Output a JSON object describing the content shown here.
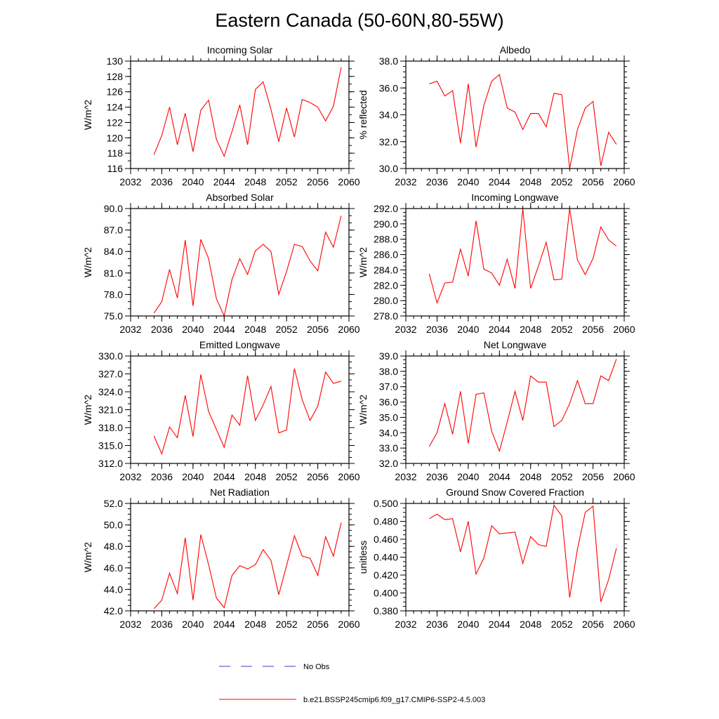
{
  "figure": {
    "title": "Eastern Canada (50-60N,80-55W)",
    "legend": [
      {
        "label": "No Obs",
        "color": "#3a3acc",
        "style": "dashed"
      },
      {
        "label": "b.e21.BSSP245cmip6.f09_g17.CMIP6-SSP2-4.5.003",
        "color": "#ff0000",
        "style": "solid"
      }
    ]
  },
  "chart_data": [
    {
      "type": "line",
      "title": "Incoming Solar",
      "xlabel": "",
      "ylabel": "W/m^2",
      "xlim": [
        2032,
        2060
      ],
      "xticks": [
        2032,
        2036,
        2040,
        2044,
        2048,
        2052,
        2056,
        2060
      ],
      "ylim": [
        116,
        130
      ],
      "yticks": [
        "116",
        "118",
        "120",
        "122",
        "124",
        "126",
        "128",
        "130"
      ],
      "yminor": 1,
      "xminor": 1,
      "x": [
        2035,
        2036,
        2037,
        2038,
        2039,
        2040,
        2041,
        2042,
        2043,
        2044,
        2045,
        2046,
        2047,
        2048,
        2049,
        2050,
        2051,
        2052,
        2053,
        2054,
        2055,
        2056,
        2057,
        2058,
        2059
      ],
      "series": [
        {
          "name": "b.e21.BSSP245cmip6.f09_g17.CMIP6-SSP2-4.5.003",
          "color": "#ff0000",
          "values": [
            117.8,
            120.3,
            124.0,
            119.1,
            123.2,
            118.2,
            123.6,
            124.9,
            119.8,
            117.6,
            120.8,
            124.3,
            119.1,
            126.3,
            127.3,
            123.7,
            119.5,
            123.9,
            120.1,
            125.0,
            124.6,
            124.0,
            122.2,
            124.1,
            129.2
          ]
        }
      ]
    },
    {
      "type": "line",
      "title": "Albedo",
      "xlabel": "",
      "ylabel": "% reflected",
      "xlim": [
        2032,
        2060
      ],
      "xticks": [
        2032,
        2036,
        2040,
        2044,
        2048,
        2052,
        2056,
        2060
      ],
      "ylim": [
        30,
        38
      ],
      "yticks": [
        "30.0",
        "32.0",
        "34.0",
        "36.0",
        "38.0"
      ],
      "yminor": 0.4,
      "xminor": 1,
      "x": [
        2035,
        2036,
        2037,
        2038,
        2039,
        2040,
        2041,
        2042,
        2043,
        2044,
        2045,
        2046,
        2047,
        2048,
        2049,
        2050,
        2051,
        2052,
        2053,
        2054,
        2055,
        2056,
        2057,
        2058,
        2059
      ],
      "series": [
        {
          "name": "b.e21.BSSP245cmip6.f09_g17.CMIP6-SSP2-4.5.003",
          "color": "#ff0000",
          "values": [
            36.3,
            36.5,
            35.4,
            35.8,
            31.9,
            36.3,
            31.6,
            34.7,
            36.5,
            37.0,
            34.5,
            34.2,
            32.9,
            34.1,
            34.1,
            33.1,
            35.6,
            35.5,
            30.0,
            32.9,
            34.5,
            35.0,
            30.2,
            32.7,
            31.8
          ]
        }
      ]
    },
    {
      "type": "line",
      "title": "Absorbed Solar",
      "xlabel": "",
      "ylabel": "W/m^2",
      "xlim": [
        2032,
        2060
      ],
      "xticks": [
        2032,
        2036,
        2040,
        2044,
        2048,
        2052,
        2056,
        2060
      ],
      "ylim": [
        75,
        90
      ],
      "yticks": [
        "75.0",
        "78.0",
        "81.0",
        "84.0",
        "87.0",
        "90.0"
      ],
      "yminor": 1,
      "xminor": 1,
      "x": [
        2035,
        2036,
        2037,
        2038,
        2039,
        2040,
        2041,
        2042,
        2043,
        2044,
        2045,
        2046,
        2047,
        2048,
        2049,
        2050,
        2051,
        2052,
        2053,
        2054,
        2055,
        2056,
        2057,
        2058,
        2059
      ],
      "series": [
        {
          "name": "b.e21.BSSP245cmip6.f09_g17.CMIP6-SSP2-4.5.003",
          "color": "#ff0000",
          "values": [
            75.4,
            77.0,
            81.5,
            77.5,
            85.6,
            76.4,
            85.7,
            83.0,
            77.4,
            75.0,
            80.1,
            83.0,
            80.8,
            84.1,
            85.0,
            84.0,
            78.0,
            81.2,
            85.0,
            84.7,
            82.7,
            81.3,
            86.7,
            84.6,
            89.0
          ]
        }
      ]
    },
    {
      "type": "line",
      "title": "Incoming Longwave",
      "xlabel": "",
      "ylabel": "W/m^2",
      "xlim": [
        2032,
        2060
      ],
      "xticks": [
        2032,
        2036,
        2040,
        2044,
        2048,
        2052,
        2056,
        2060
      ],
      "ylim": [
        278,
        292
      ],
      "yticks": [
        "278.0",
        "280.0",
        "282.0",
        "284.0",
        "286.0",
        "288.0",
        "290.0",
        "292.0"
      ],
      "yminor": 0.5,
      "xminor": 1,
      "x": [
        2035,
        2036,
        2037,
        2038,
        2039,
        2040,
        2041,
        2042,
        2043,
        2044,
        2045,
        2046,
        2047,
        2048,
        2049,
        2050,
        2051,
        2052,
        2053,
        2054,
        2055,
        2056,
        2057,
        2058,
        2059
      ],
      "series": [
        {
          "name": "b.e21.BSSP245cmip6.f09_g17.CMIP6-SSP2-4.5.003",
          "color": "#ff0000",
          "values": [
            283.5,
            279.7,
            282.3,
            282.4,
            286.7,
            283.2,
            290.4,
            284.1,
            283.6,
            282.0,
            285.4,
            281.6,
            292.0,
            281.6,
            284.5,
            287.6,
            282.7,
            282.8,
            292.0,
            285.3,
            283.4,
            285.5,
            289.6,
            287.9,
            287.1
          ]
        }
      ]
    },
    {
      "type": "line",
      "title": "Emitted Longwave",
      "xlabel": "",
      "ylabel": "W/m^2",
      "xlim": [
        2032,
        2060
      ],
      "xticks": [
        2032,
        2036,
        2040,
        2044,
        2048,
        2052,
        2056,
        2060
      ],
      "ylim": [
        312,
        330
      ],
      "yticks": [
        "312.0",
        "315.0",
        "318.0",
        "321.0",
        "324.0",
        "327.0",
        "330.0"
      ],
      "yminor": 1,
      "xminor": 1,
      "x": [
        2035,
        2036,
        2037,
        2038,
        2039,
        2040,
        2041,
        2042,
        2043,
        2044,
        2045,
        2046,
        2047,
        2048,
        2049,
        2050,
        2051,
        2052,
        2053,
        2054,
        2055,
        2056,
        2057,
        2058,
        2059
      ],
      "series": [
        {
          "name": "b.e21.BSSP245cmip6.f09_g17.CMIP6-SSP2-4.5.003",
          "color": "#ff0000",
          "values": [
            316.6,
            313.6,
            318.1,
            316.3,
            323.4,
            316.5,
            326.9,
            320.7,
            317.7,
            314.7,
            320.1,
            318.4,
            326.7,
            319.2,
            321.8,
            324.9,
            317.1,
            317.6,
            327.9,
            322.7,
            319.2,
            321.6,
            327.3,
            325.4,
            325.8
          ]
        }
      ]
    },
    {
      "type": "line",
      "title": "Net Longwave",
      "xlabel": "",
      "ylabel": "W/m^2",
      "xlim": [
        2032,
        2060
      ],
      "xticks": [
        2032,
        2036,
        2040,
        2044,
        2048,
        2052,
        2056,
        2060
      ],
      "ylim": [
        32,
        39
      ],
      "yticks": [
        "32.0",
        "33.0",
        "34.0",
        "35.0",
        "36.0",
        "37.0",
        "38.0",
        "39.0"
      ],
      "yminor": 0.25,
      "xminor": 1,
      "x": [
        2035,
        2036,
        2037,
        2038,
        2039,
        2040,
        2041,
        2042,
        2043,
        2044,
        2045,
        2046,
        2047,
        2048,
        2049,
        2050,
        2051,
        2052,
        2053,
        2054,
        2055,
        2056,
        2057,
        2058,
        2059
      ],
      "series": [
        {
          "name": "b.e21.BSSP245cmip6.f09_g17.CMIP6-SSP2-4.5.003",
          "color": "#ff0000",
          "values": [
            33.1,
            34.0,
            35.9,
            33.9,
            36.7,
            33.3,
            36.5,
            36.6,
            34.1,
            32.8,
            34.7,
            36.7,
            34.8,
            37.7,
            37.3,
            37.3,
            34.4,
            34.8,
            35.9,
            37.4,
            35.9,
            35.9,
            37.7,
            37.4,
            38.8
          ]
        }
      ]
    },
    {
      "type": "line",
      "title": "Net Radiation",
      "xlabel": "",
      "ylabel": "W/m^2",
      "xlim": [
        2032,
        2060
      ],
      "xticks": [
        2032,
        2036,
        2040,
        2044,
        2048,
        2052,
        2056,
        2060
      ],
      "ylim": [
        42,
        52
      ],
      "yticks": [
        "42.0",
        "44.0",
        "46.0",
        "48.0",
        "50.0",
        "52.0"
      ],
      "yminor": 0.5,
      "xminor": 1,
      "x": [
        2035,
        2036,
        2037,
        2038,
        2039,
        2040,
        2041,
        2042,
        2043,
        2044,
        2045,
        2046,
        2047,
        2048,
        2049,
        2050,
        2051,
        2052,
        2053,
        2054,
        2055,
        2056,
        2057,
        2058,
        2059
      ],
      "series": [
        {
          "name": "b.e21.BSSP245cmip6.f09_g17.CMIP6-SSP2-4.5.003",
          "color": "#ff0000",
          "values": [
            42.2,
            43.0,
            45.5,
            43.6,
            48.8,
            43.0,
            49.1,
            46.3,
            43.2,
            42.3,
            45.3,
            46.2,
            45.9,
            46.3,
            47.7,
            46.7,
            43.5,
            46.2,
            49.0,
            47.1,
            46.9,
            45.3,
            48.9,
            47.1,
            50.2
          ]
        }
      ]
    },
    {
      "type": "line",
      "title": "Ground Snow Covered Fraction",
      "xlabel": "",
      "ylabel": "unitless",
      "xlim": [
        2032,
        2060
      ],
      "xticks": [
        2032,
        2036,
        2040,
        2044,
        2048,
        2052,
        2056,
        2060
      ],
      "ylim": [
        0.38,
        0.5
      ],
      "yticks": [
        "0.380",
        "0.400",
        "0.420",
        "0.440",
        "0.460",
        "0.480",
        "0.500"
      ],
      "yminor": 0.005,
      "xminor": 1,
      "x": [
        2035,
        2036,
        2037,
        2038,
        2039,
        2040,
        2041,
        2042,
        2043,
        2044,
        2045,
        2046,
        2047,
        2048,
        2049,
        2050,
        2051,
        2052,
        2053,
        2054,
        2055,
        2056,
        2057,
        2058,
        2059
      ],
      "series": [
        {
          "name": "b.e21.BSSP245cmip6.f09_g17.CMIP6-SSP2-4.5.003",
          "color": "#ff0000",
          "values": [
            0.483,
            0.488,
            0.482,
            0.483,
            0.446,
            0.48,
            0.421,
            0.439,
            0.475,
            0.466,
            0.467,
            0.468,
            0.433,
            0.463,
            0.454,
            0.452,
            0.498,
            0.486,
            0.395,
            0.449,
            0.49,
            0.497,
            0.39,
            0.415,
            0.45
          ]
        }
      ]
    }
  ]
}
